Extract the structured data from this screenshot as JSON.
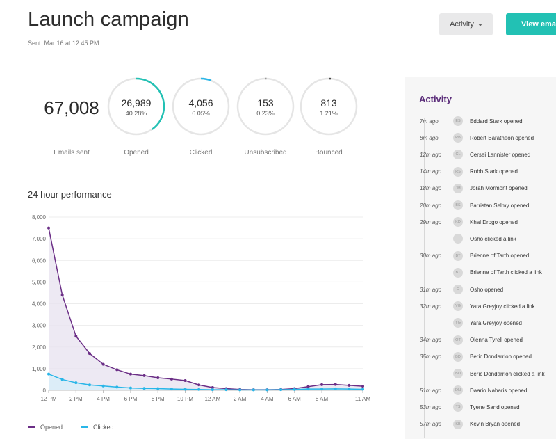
{
  "header": {
    "title": "Launch campaign",
    "sent": "Sent: Mar 16 at 12:45 PM",
    "activity_dropdown": "Activity",
    "view_button": "View email"
  },
  "colors": {
    "accent_teal": "#22c1b4",
    "opened_purple": "#6b2e86",
    "clicked_blue": "#29b6e8",
    "activity_title": "#5b2d7a"
  },
  "stats": {
    "emails_sent": {
      "value": "67,008",
      "label": "Emails sent"
    },
    "rings": [
      {
        "value": "26,989",
        "pct": "40.28%",
        "label": "Opened",
        "fraction": 0.4028,
        "color": "#22c1b4"
      },
      {
        "value": "4,056",
        "pct": "6.05%",
        "label": "Clicked",
        "fraction": 0.0605,
        "color": "#29b6e8"
      },
      {
        "value": "153",
        "pct": "0.23%",
        "label": "Unsubscribed",
        "fraction": 0.0023,
        "color": "#999999"
      },
      {
        "value": "813",
        "pct": "1.21%",
        "label": "Bounced",
        "fraction": 0.0121,
        "color": "#444444"
      }
    ]
  },
  "chart_title": "24 hour performance",
  "chart_data": {
    "type": "line",
    "title": "24 hour performance",
    "xlabel": "",
    "ylabel": "",
    "ylim": [
      0,
      8000
    ],
    "yticks": [
      "0",
      "1,000",
      "2,000",
      "3,000",
      "4,000",
      "5,000",
      "6,000",
      "7,000",
      "8,000"
    ],
    "yticks_values": [
      0,
      1000,
      2000,
      3000,
      4000,
      5000,
      6000,
      7000,
      8000
    ],
    "xticks": [
      "12 PM",
      "2 PM",
      "4 PM",
      "6 PM",
      "8 PM",
      "10 PM",
      "12 AM",
      "2 AM",
      "4 AM",
      "6 AM",
      "8 AM",
      "11 AM"
    ],
    "xticks_hours": [
      0,
      2,
      4,
      6,
      8,
      10,
      12,
      14,
      16,
      18,
      20,
      23
    ],
    "x": [
      0,
      1,
      2,
      3,
      4,
      5,
      6,
      7,
      8,
      9,
      10,
      11,
      12,
      13,
      14,
      15,
      16,
      17,
      18,
      19,
      20,
      21,
      22,
      23
    ],
    "series": [
      {
        "name": "Opened",
        "color": "#6b2e86",
        "values": [
          7500,
          4400,
          2500,
          1700,
          1200,
          950,
          750,
          680,
          580,
          520,
          450,
          250,
          130,
          80,
          40,
          30,
          30,
          40,
          80,
          170,
          260,
          270,
          230,
          190
        ]
      },
      {
        "name": "Clicked",
        "color": "#29b6e8",
        "values": [
          750,
          500,
          350,
          250,
          200,
          150,
          110,
          90,
          80,
          60,
          50,
          40,
          30,
          30,
          20,
          20,
          20,
          30,
          40,
          60,
          60,
          70,
          60,
          50
        ]
      }
    ],
    "legend": "bottom-left"
  },
  "activity": {
    "title": "Activity",
    "items": [
      {
        "time": "7m ago",
        "initials": "ES",
        "text": "Eddard Stark opened"
      },
      {
        "time": "8m ago",
        "initials": "RB",
        "text": "Robert Baratheon opened"
      },
      {
        "time": "12m ago",
        "initials": "CL",
        "text": "Cersei Lannister opened"
      },
      {
        "time": "14m ago",
        "initials": "RS",
        "text": "Robb Stark opened"
      },
      {
        "time": "18m ago",
        "initials": "JM",
        "text": "Jorah Mormont opened"
      },
      {
        "time": "20m ago",
        "initials": "BS",
        "text": "Barristan Selmy opened"
      },
      {
        "time": "29m ago",
        "initials": "KD",
        "text": "Khal Drogo opened"
      },
      {
        "time": "",
        "initials": "O",
        "text": "Osho clicked a link"
      },
      {
        "time": "30m ago",
        "initials": "BT",
        "text": "Brienne of Tarth opened"
      },
      {
        "time": "",
        "initials": "BT",
        "text": "Brienne of Tarth clicked a link"
      },
      {
        "time": "31m ago",
        "initials": "O",
        "text": "Osho opened"
      },
      {
        "time": "32m ago",
        "initials": "YG",
        "text": "Yara Greyjoy clicked a link"
      },
      {
        "time": "",
        "initials": "YG",
        "text": "Yara Greyjoy opened"
      },
      {
        "time": "34m ago",
        "initials": "OT",
        "text": "Olenna Tyrell opened"
      },
      {
        "time": "35m ago",
        "initials": "BD",
        "text": "Beric Dondarrion opened"
      },
      {
        "time": "",
        "initials": "BD",
        "text": "Beric Dondarrion clicked a link"
      },
      {
        "time": "51m ago",
        "initials": "DN",
        "text": "Daario Naharis opened"
      },
      {
        "time": "53m ago",
        "initials": "TS",
        "text": "Tyene Sand opened"
      },
      {
        "time": "57m ago",
        "initials": "KB",
        "text": "Kevin Bryan opened"
      }
    ]
  }
}
